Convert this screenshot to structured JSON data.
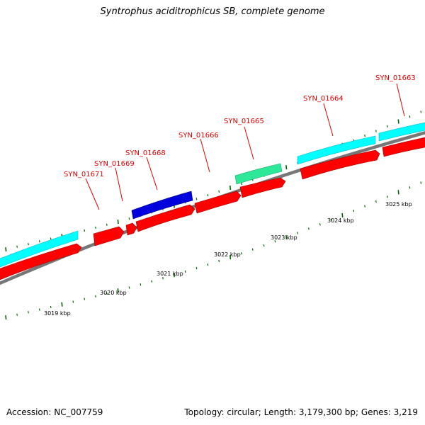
{
  "title": "Syntrophus aciditrophicus SB, complete genome",
  "accession": "Accession: NC_007759",
  "stats": "Topology: circular; Length: 3,179,300 bp; Genes: 3,219",
  "colors": {
    "backbone": "#808080",
    "cds": "#ff0000",
    "cyan_feature": "#00ffff",
    "blue_feature": "#0000dd",
    "green_feature": "#2ee89a",
    "gene_label": "#e00000",
    "tick": "#006600"
  },
  "scale_ticks": [
    "3019 kbp",
    "3020 kbp",
    "3021 kbp",
    "3022 kbp",
    "3023 kbp",
    "3024 kbp",
    "3025 kbp"
  ],
  "gene_labels": [
    "SYN_01671",
    "SYN_01669",
    "SYN_01668",
    "SYN_01666",
    "SYN_01665",
    "SYN_01664",
    "SYN_01663"
  ]
}
